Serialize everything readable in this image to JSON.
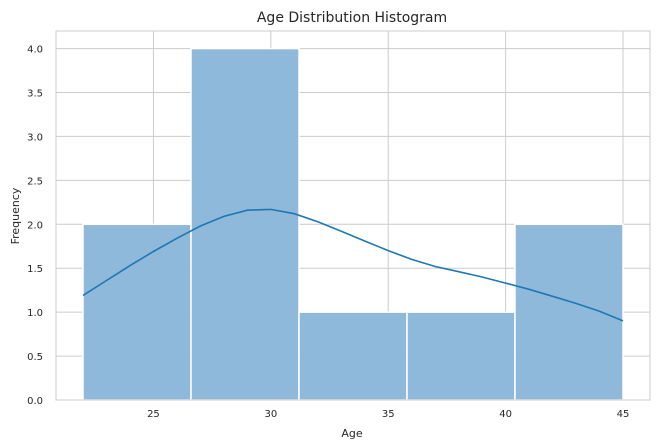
{
  "chart_data": {
    "type": "bar",
    "title": "Age Distribution Histogram",
    "xlabel": "Age",
    "ylabel": "Frequency",
    "xlim": [
      20.85,
      46.15
    ],
    "ylim": [
      0,
      4.2
    ],
    "xticks": [
      25,
      30,
      35,
      40,
      45
    ],
    "yticks": [
      0.0,
      0.5,
      1.0,
      1.5,
      2.0,
      2.5,
      3.0,
      3.5,
      4.0
    ],
    "grid": true,
    "bins": [
      {
        "x0": 22.0,
        "x1": 26.6,
        "count": 2
      },
      {
        "x0": 26.6,
        "x1": 31.2,
        "count": 4
      },
      {
        "x0": 31.2,
        "x1": 35.8,
        "count": 1
      },
      {
        "x0": 35.8,
        "x1": 40.4,
        "count": 1
      },
      {
        "x0": 40.4,
        "x1": 45.0,
        "count": 2
      }
    ],
    "kde": {
      "x": [
        22,
        23,
        24,
        25,
        26,
        27,
        28,
        29,
        30,
        31,
        32,
        33,
        34,
        35,
        36,
        37,
        38,
        39,
        40,
        41,
        42,
        43,
        44,
        45
      ],
      "y": [
        1.19,
        1.36,
        1.53,
        1.69,
        1.84,
        1.98,
        2.09,
        2.16,
        2.17,
        2.12,
        2.03,
        1.92,
        1.81,
        1.7,
        1.6,
        1.52,
        1.46,
        1.4,
        1.33,
        1.26,
        1.18,
        1.1,
        1.01,
        0.9
      ]
    },
    "colors": {
      "bar_fill": "#8cb8da",
      "bar_stroke": "#ffffff",
      "kde_line": "#1f77b4",
      "grid": "#cccccc",
      "spine": "#cccccc"
    }
  }
}
